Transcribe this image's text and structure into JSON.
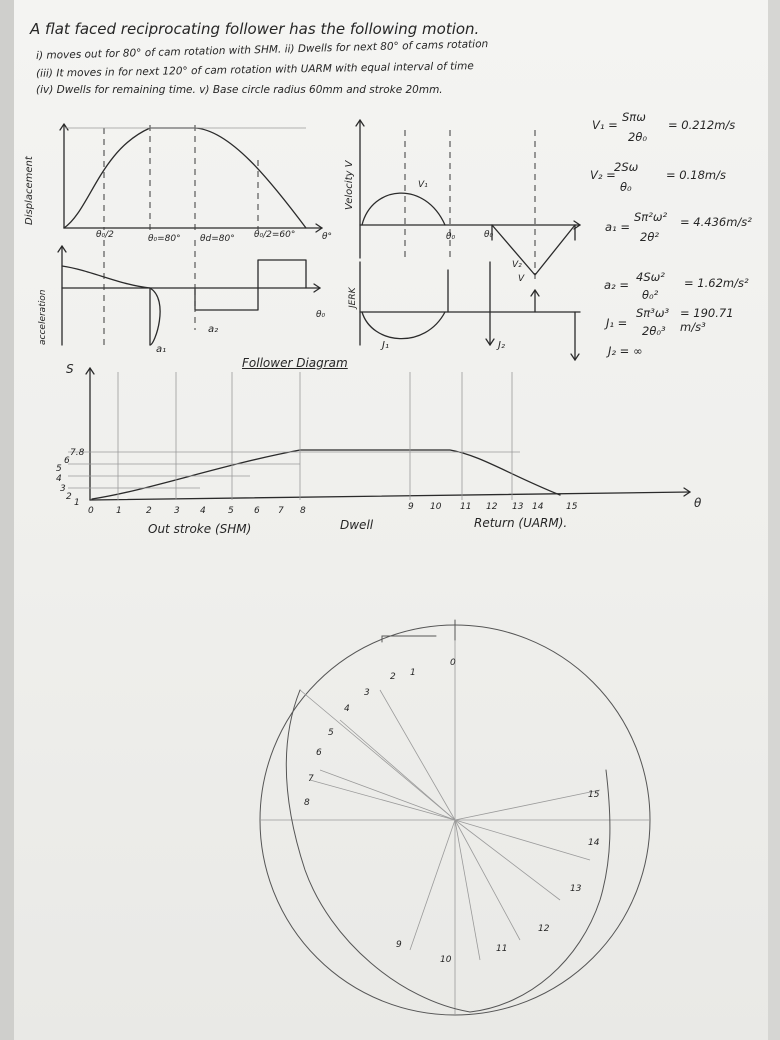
{
  "problem": {
    "title": "A flat faced reciprocating follower has the following motion.",
    "line1": "i) moves out for 80° of cam rotation with SHM. ii) Dwells for next 80° of cams rotation",
    "line2": "(iii) It moves in for next 120° of cam rotation with UARM with equal interval of time",
    "line3": "(iv) Dwells for remaining time. v) Base circle radius 60mm and stroke 20mm."
  },
  "equations": [
    {
      "lhs": "V₁ =",
      "frac_num": "Sπω",
      "frac_den": "2θ₀",
      "rhs": "= 0.212m/s"
    },
    {
      "lhs": "V₂ =",
      "frac_num": "2Sω",
      "frac_den": "θ₀",
      "rhs": "= 0.18m/s"
    },
    {
      "lhs": "a₁ =",
      "frac_num": "Sπ²ω²",
      "frac_den": "2θ²",
      "rhs": "= 4.436m/s²"
    },
    {
      "lhs": "a₂ =",
      "frac_num": "4Sω²",
      "frac_den": "θ₀²",
      "rhs": "= 1.62m/s²"
    },
    {
      "lhs": "J₁ =",
      "frac_num": "Sπ³ω³",
      "frac_den": "2θ₀³",
      "rhs": "= 190.71 m/s³"
    },
    {
      "lhs": "J₂ = ∞",
      "frac_num": "",
      "frac_den": "",
      "rhs": ""
    }
  ],
  "disp_graph": {
    "ylabel": "Displacement",
    "ticks": [
      "θ₀/2",
      "θ₀=80°",
      "θd=80°",
      "θ₀/2=60°",
      "θ°"
    ]
  },
  "vel_graph": {
    "ylabel": "Velocity V",
    "labels": [
      "V₁",
      "θ₀",
      "θ₀",
      "V₂",
      "V"
    ]
  },
  "acc_graph": {
    "ylabel": "acceleration",
    "labels": [
      "a₁",
      "a₂",
      "θ₀"
    ]
  },
  "jerk_graph": {
    "ylabel": "JERK",
    "labels": [
      "J₁",
      "J₂"
    ]
  },
  "follower_diagram": {
    "title": "Follower Diagram",
    "s_label": "S",
    "theta_label": "θ",
    "x_ticks": [
      "0",
      "1",
      "2",
      "3",
      "4",
      "5",
      "6",
      "7",
      "8",
      "9",
      "10",
      "11",
      "12",
      "13",
      "14",
      "15"
    ],
    "y_ticks": [
      "7.8",
      "6",
      "5",
      "4",
      "3",
      "2",
      "1"
    ],
    "segment_outstroke": "Out stroke (SHM)",
    "segment_dwell": "Dwell",
    "segment_return": "Return (UARM)."
  },
  "cam_profile": {
    "labels": [
      "0",
      "1",
      "2",
      "3",
      "4",
      "5",
      "6",
      "7",
      "8",
      "9",
      "10",
      "11",
      "12",
      "13",
      "14",
      "15"
    ]
  }
}
